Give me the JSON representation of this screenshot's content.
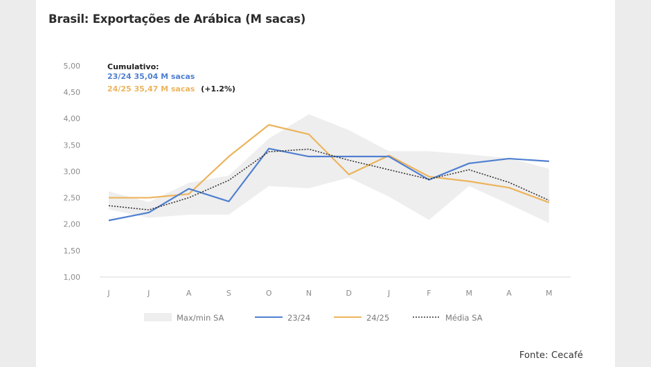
{
  "title": "Brasil: Exportações de Arábica (M sacas)",
  "source": "Fonte: Cecafé",
  "annotation": {
    "title": "Cumulativo:",
    "line1": "23/24 35,04 M sacas",
    "line2_colored": "24/25 35,47 M sacas",
    "line2_suffix": "(+1.2%)"
  },
  "colors": {
    "series_2324": "#4f7fd1",
    "series_2425": "#ecb45c",
    "media": "#333333",
    "range": "#eeeeee"
  },
  "chart_data": {
    "type": "line",
    "categories": [
      "J",
      "J",
      "A",
      "S",
      "O",
      "N",
      "D",
      "J",
      "F",
      "M",
      "A",
      "M"
    ],
    "ylim": [
      1.0,
      5.0
    ],
    "y_ticks": [
      "1,00",
      "1,50",
      "2,00",
      "2,50",
      "3,00",
      "3,50",
      "4,00",
      "4,50",
      "5,00"
    ],
    "legend_position": "bottom",
    "grid": false,
    "range_band": {
      "name": "Max/min SA",
      "max": [
        2.62,
        2.42,
        2.78,
        2.92,
        3.62,
        4.08,
        3.78,
        3.38,
        3.38,
        3.32,
        3.25,
        3.05
      ],
      "min": [
        2.28,
        2.12,
        2.18,
        2.18,
        2.72,
        2.68,
        2.88,
        2.52,
        2.08,
        2.72,
        2.38,
        2.02
      ]
    },
    "series": [
      {
        "name": "23/24",
        "values": [
          2.07,
          2.22,
          2.67,
          2.43,
          3.43,
          3.28,
          3.28,
          3.28,
          2.84,
          3.15,
          3.24,
          3.19
        ]
      },
      {
        "name": "24/25",
        "values": [
          2.5,
          2.5,
          2.57,
          3.28,
          3.88,
          3.7,
          2.94,
          3.3,
          2.9,
          2.81,
          2.69,
          2.41
        ]
      },
      {
        "name": "Média SA",
        "values": [
          2.35,
          2.27,
          2.5,
          2.83,
          3.37,
          3.42,
          3.21,
          3.03,
          2.85,
          3.03,
          2.79,
          2.45
        ]
      }
    ]
  }
}
